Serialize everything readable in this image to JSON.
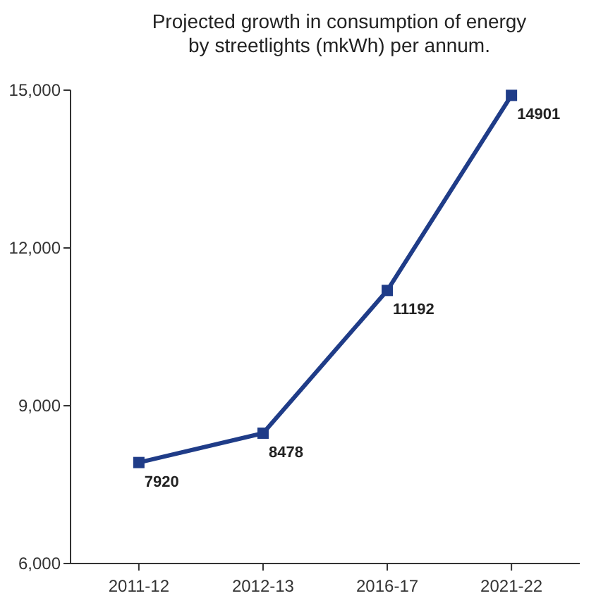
{
  "chart_data": {
    "type": "line",
    "title": "Projected growth in consumption of energy\nby streetlights (mkWh) per annum.",
    "categories": [
      "2011-12",
      "2012-13",
      "2016-17",
      "2021-22"
    ],
    "series": [
      {
        "color": "#1f3c88",
        "values": [
          7920,
          8478,
          11192,
          14901
        ]
      }
    ],
    "ylim": [
      6000,
      15000
    ],
    "yticks": [
      {
        "value": 6000,
        "label": "6,000"
      },
      {
        "value": 9000,
        "label": "9,000"
      },
      {
        "value": 12000,
        "label": "12,000"
      },
      {
        "value": 15000,
        "label": "15,000"
      }
    ],
    "data_labels": true,
    "marker": "square",
    "line_style": "solid",
    "grid": false
  }
}
